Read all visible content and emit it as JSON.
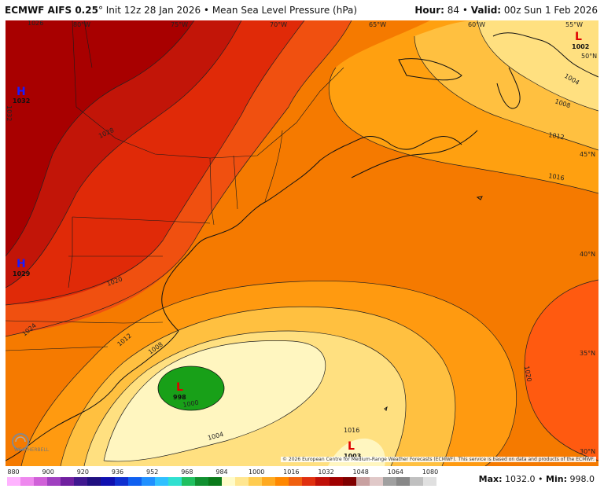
{
  "header": {
    "model": "ECMWF AIFS 0.25",
    "degree": "°",
    "init": "Init 12z 28 Jan 2026",
    "bullet": "•",
    "field": "Mean Sea Level Pressure (hPa)",
    "hour_label": "Hour:",
    "hour_value": "84",
    "valid_label": "Valid:",
    "valid_value": "00z Sun 1 Feb 2026"
  },
  "longitudes": [
    "80°W",
    "75°W",
    "70°W",
    "65°W",
    "60°W",
    "55°W"
  ],
  "latitudes": [
    "50°N",
    "45°N",
    "40°N",
    "35°N",
    "30°N"
  ],
  "pressure_centers": [
    {
      "type": "H",
      "value": "1032",
      "color": "#1a1aff"
    },
    {
      "type": "H",
      "value": "1029",
      "color": "#1a1aff"
    },
    {
      "type": "L",
      "value": "998",
      "color": "#e00000"
    },
    {
      "type": "L",
      "value": "1003",
      "color": "#e00000"
    },
    {
      "type": "L",
      "value": "1002",
      "color": "#e00000"
    }
  ],
  "contour_labels": [
    "1028",
    "1026",
    "1032",
    "1024",
    "1020",
    "1016",
    "1012",
    "1008",
    "1004",
    "1000",
    "1004",
    "1008",
    "1012",
    "1016",
    "1020"
  ],
  "credit": "© 2026 European Centre for Medium-Range Weather Forecasts (ECMWF). This service is based on data and products of the ECMWF.",
  "logo_text": "WEATHERBELL",
  "colorbar": {
    "ticks": [
      "880",
      "900",
      "920",
      "936",
      "952",
      "968",
      "984",
      "1000",
      "1016",
      "1032",
      "1048",
      "1064",
      "1080"
    ],
    "colors": [
      "#ffb3ff",
      "#ee88ee",
      "#d060d8",
      "#a040c0",
      "#7020a0",
      "#401890",
      "#201080",
      "#1010b0",
      "#1030d0",
      "#1060f0",
      "#2090ff",
      "#30c0ff",
      "#30e0d0",
      "#20c060",
      "#109030",
      "#0a7a1a",
      "#fffbc8",
      "#ffe690",
      "#ffcc50",
      "#ffaa20",
      "#ff8800",
      "#f06010",
      "#e03010",
      "#c01008",
      "#a00000",
      "#800000",
      "#c8a0a0",
      "#e0c8c8",
      "#a0a0a0",
      "#888888",
      "#c0c0c0",
      "#e0e0e0"
    ]
  },
  "stats": {
    "max_label": "Max:",
    "max_value": "1032.0",
    "sep": "•",
    "min_label": "Min:",
    "min_value": "998.0"
  }
}
